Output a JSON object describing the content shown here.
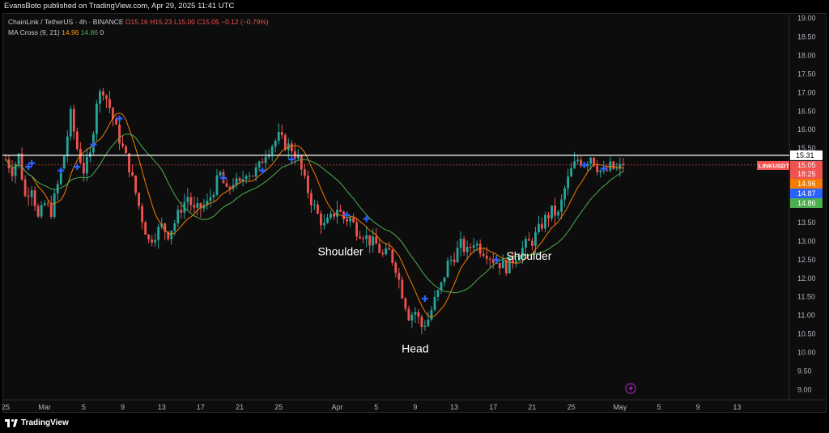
{
  "header": {
    "publisher_line": "EvansBoto published on TradingView.com, Apr 29, 2025 11:41 UTC"
  },
  "legend": {
    "symbol": "ChainLink / TetherUS · 4h · BINANCE",
    "open": "O15.16",
    "high": "H15.23",
    "low": "L15.00",
    "close": "C15.05",
    "change": "−0.12 (−0.79%)",
    "ma_name": "MA Cross (9, 21)",
    "ma_fast": "14.96",
    "ma_slow": "14.86",
    "ma_zero": "0"
  },
  "footer": {
    "brand": "TradingView"
  },
  "colors": {
    "up": "#26a69a",
    "down": "#ef5350",
    "ma_fast": "#f57c00",
    "ma_slow": "#4caf50",
    "cross": "#2962ff",
    "level": "#ffffff",
    "bg": "#0d0d0d"
  },
  "chart_data": {
    "type": "candlestick",
    "symbol": "LINKUSDT",
    "timeframe": "4h",
    "ylim": [
      8.9,
      19.1
    ],
    "y_ticks": [
      "19.00",
      "18.50",
      "18.00",
      "17.50",
      "17.00",
      "16.50",
      "16.00",
      "15.50",
      "15.00",
      "14.50",
      "14.00",
      "13.50",
      "13.00",
      "12.50",
      "12.00",
      "11.50",
      "11.00",
      "10.50",
      "10.00",
      "9.50",
      "9.00"
    ],
    "x_ticks": [
      {
        "label": "25",
        "index": 0
      },
      {
        "label": "Mar",
        "index": 12
      },
      {
        "label": "5",
        "index": 24
      },
      {
        "label": "9",
        "index": 36
      },
      {
        "label": "13",
        "index": 48
      },
      {
        "label": "17",
        "index": 60
      },
      {
        "label": "21",
        "index": 72
      },
      {
        "label": "25",
        "index": 84
      },
      {
        "label": "Apr",
        "index": 102
      },
      {
        "label": "5",
        "index": 114
      },
      {
        "label": "9",
        "index": 126
      },
      {
        "label": "13",
        "index": 138
      },
      {
        "label": "17",
        "index": 150
      },
      {
        "label": "21",
        "index": 162
      },
      {
        "label": "25",
        "index": 174
      },
      {
        "label": "May",
        "index": 189
      },
      {
        "label": "5",
        "index": 201
      },
      {
        "label": "9",
        "index": 213
      },
      {
        "label": "13",
        "index": 225
      }
    ],
    "close_path": [
      [
        0,
        15.2
      ],
      [
        2,
        14.9
      ],
      [
        4,
        15.3
      ],
      [
        6,
        14.2
      ],
      [
        8,
        14.5
      ],
      [
        10,
        13.6
      ],
      [
        12,
        14.0
      ],
      [
        14,
        13.8
      ],
      [
        16,
        14.5
      ],
      [
        18,
        15.3
      ],
      [
        20,
        16.4
      ],
      [
        22,
        15.5
      ],
      [
        24,
        14.9
      ],
      [
        26,
        15.3
      ],
      [
        28,
        16.8
      ],
      [
        30,
        17.1
      ],
      [
        32,
        16.6
      ],
      [
        34,
        16.0
      ],
      [
        36,
        15.5
      ],
      [
        38,
        15.0
      ],
      [
        40,
        14.3
      ],
      [
        42,
        13.6
      ],
      [
        44,
        13.0
      ],
      [
        46,
        13.2
      ],
      [
        48,
        13.4
      ],
      [
        50,
        13.2
      ],
      [
        52,
        13.5
      ],
      [
        54,
        13.9
      ],
      [
        56,
        14.2
      ],
      [
        58,
        13.8
      ],
      [
        60,
        13.9
      ],
      [
        62,
        14.0
      ],
      [
        64,
        14.4
      ],
      [
        66,
        14.8
      ],
      [
        68,
        14.3
      ],
      [
        70,
        14.6
      ],
      [
        72,
        14.5
      ],
      [
        74,
        14.9
      ],
      [
        76,
        14.8
      ],
      [
        78,
        15.0
      ],
      [
        80,
        15.4
      ],
      [
        82,
        15.6
      ],
      [
        84,
        15.8
      ],
      [
        86,
        15.6
      ],
      [
        88,
        15.5
      ],
      [
        90,
        15.2
      ],
      [
        92,
        14.6
      ],
      [
        94,
        14.1
      ],
      [
        96,
        13.7
      ],
      [
        98,
        13.4
      ],
      [
        100,
        13.6
      ],
      [
        102,
        13.9
      ],
      [
        104,
        13.6
      ],
      [
        106,
        13.6
      ],
      [
        108,
        13.3
      ],
      [
        110,
        13.2
      ],
      [
        112,
        13.0
      ],
      [
        114,
        12.9
      ],
      [
        116,
        12.6
      ],
      [
        118,
        12.7
      ],
      [
        120,
        12.3
      ],
      [
        122,
        11.6
      ],
      [
        124,
        11.0
      ],
      [
        126,
        11.1
      ],
      [
        128,
        10.7
      ],
      [
        130,
        10.9
      ],
      [
        132,
        11.4
      ],
      [
        134,
        11.8
      ],
      [
        136,
        12.4
      ],
      [
        138,
        12.6
      ],
      [
        140,
        12.9
      ],
      [
        142,
        12.7
      ],
      [
        144,
        13.0
      ],
      [
        146,
        12.8
      ],
      [
        148,
        12.7
      ],
      [
        150,
        12.5
      ],
      [
        152,
        12.4
      ],
      [
        154,
        12.3
      ],
      [
        156,
        12.5
      ],
      [
        158,
        12.7
      ],
      [
        160,
        12.9
      ],
      [
        162,
        13.0
      ],
      [
        164,
        13.3
      ],
      [
        166,
        13.6
      ],
      [
        168,
        13.8
      ],
      [
        170,
        13.7
      ],
      [
        172,
        14.4
      ],
      [
        174,
        14.9
      ],
      [
        176,
        15.2
      ],
      [
        178,
        15.1
      ],
      [
        180,
        15.3
      ],
      [
        182,
        15.0
      ],
      [
        184,
        14.8
      ],
      [
        186,
        15.0
      ],
      [
        188,
        14.9
      ],
      [
        190,
        15.05
      ]
    ],
    "ma_fast_label": "14.96",
    "ma_slow_label": "14.86",
    "cross_signals": [
      {
        "index": 7,
        "price": 15.0
      },
      {
        "index": 8,
        "price": 15.1
      },
      {
        "index": 17,
        "price": 14.9
      },
      {
        "index": 22,
        "price": 15.0
      },
      {
        "index": 27,
        "price": 15.6
      },
      {
        "index": 35,
        "price": 16.3
      },
      {
        "index": 67,
        "price": 14.7
      },
      {
        "index": 79,
        "price": 14.9
      },
      {
        "index": 88,
        "price": 15.2
      },
      {
        "index": 105,
        "price": 13.7
      },
      {
        "index": 111,
        "price": 13.6
      },
      {
        "index": 129,
        "price": 11.45
      },
      {
        "index": 151,
        "price": 12.5
      },
      {
        "index": 178,
        "price": 15.05
      },
      {
        "index": 184,
        "price": 14.95
      }
    ],
    "horizontal_level": {
      "price": 15.31,
      "label": "15.31"
    },
    "current_price": {
      "price": 15.05,
      "label": "15.05",
      "symbol_tag": "LINKUSDT",
      "countdown": "18:25"
    },
    "annotations": [
      {
        "text": "Shoulder",
        "index": 103,
        "price": 12.62
      },
      {
        "text": "Head",
        "index": 126,
        "price": 10.0
      },
      {
        "text": "Shoulder",
        "index": 161,
        "price": 12.5
      }
    ]
  }
}
